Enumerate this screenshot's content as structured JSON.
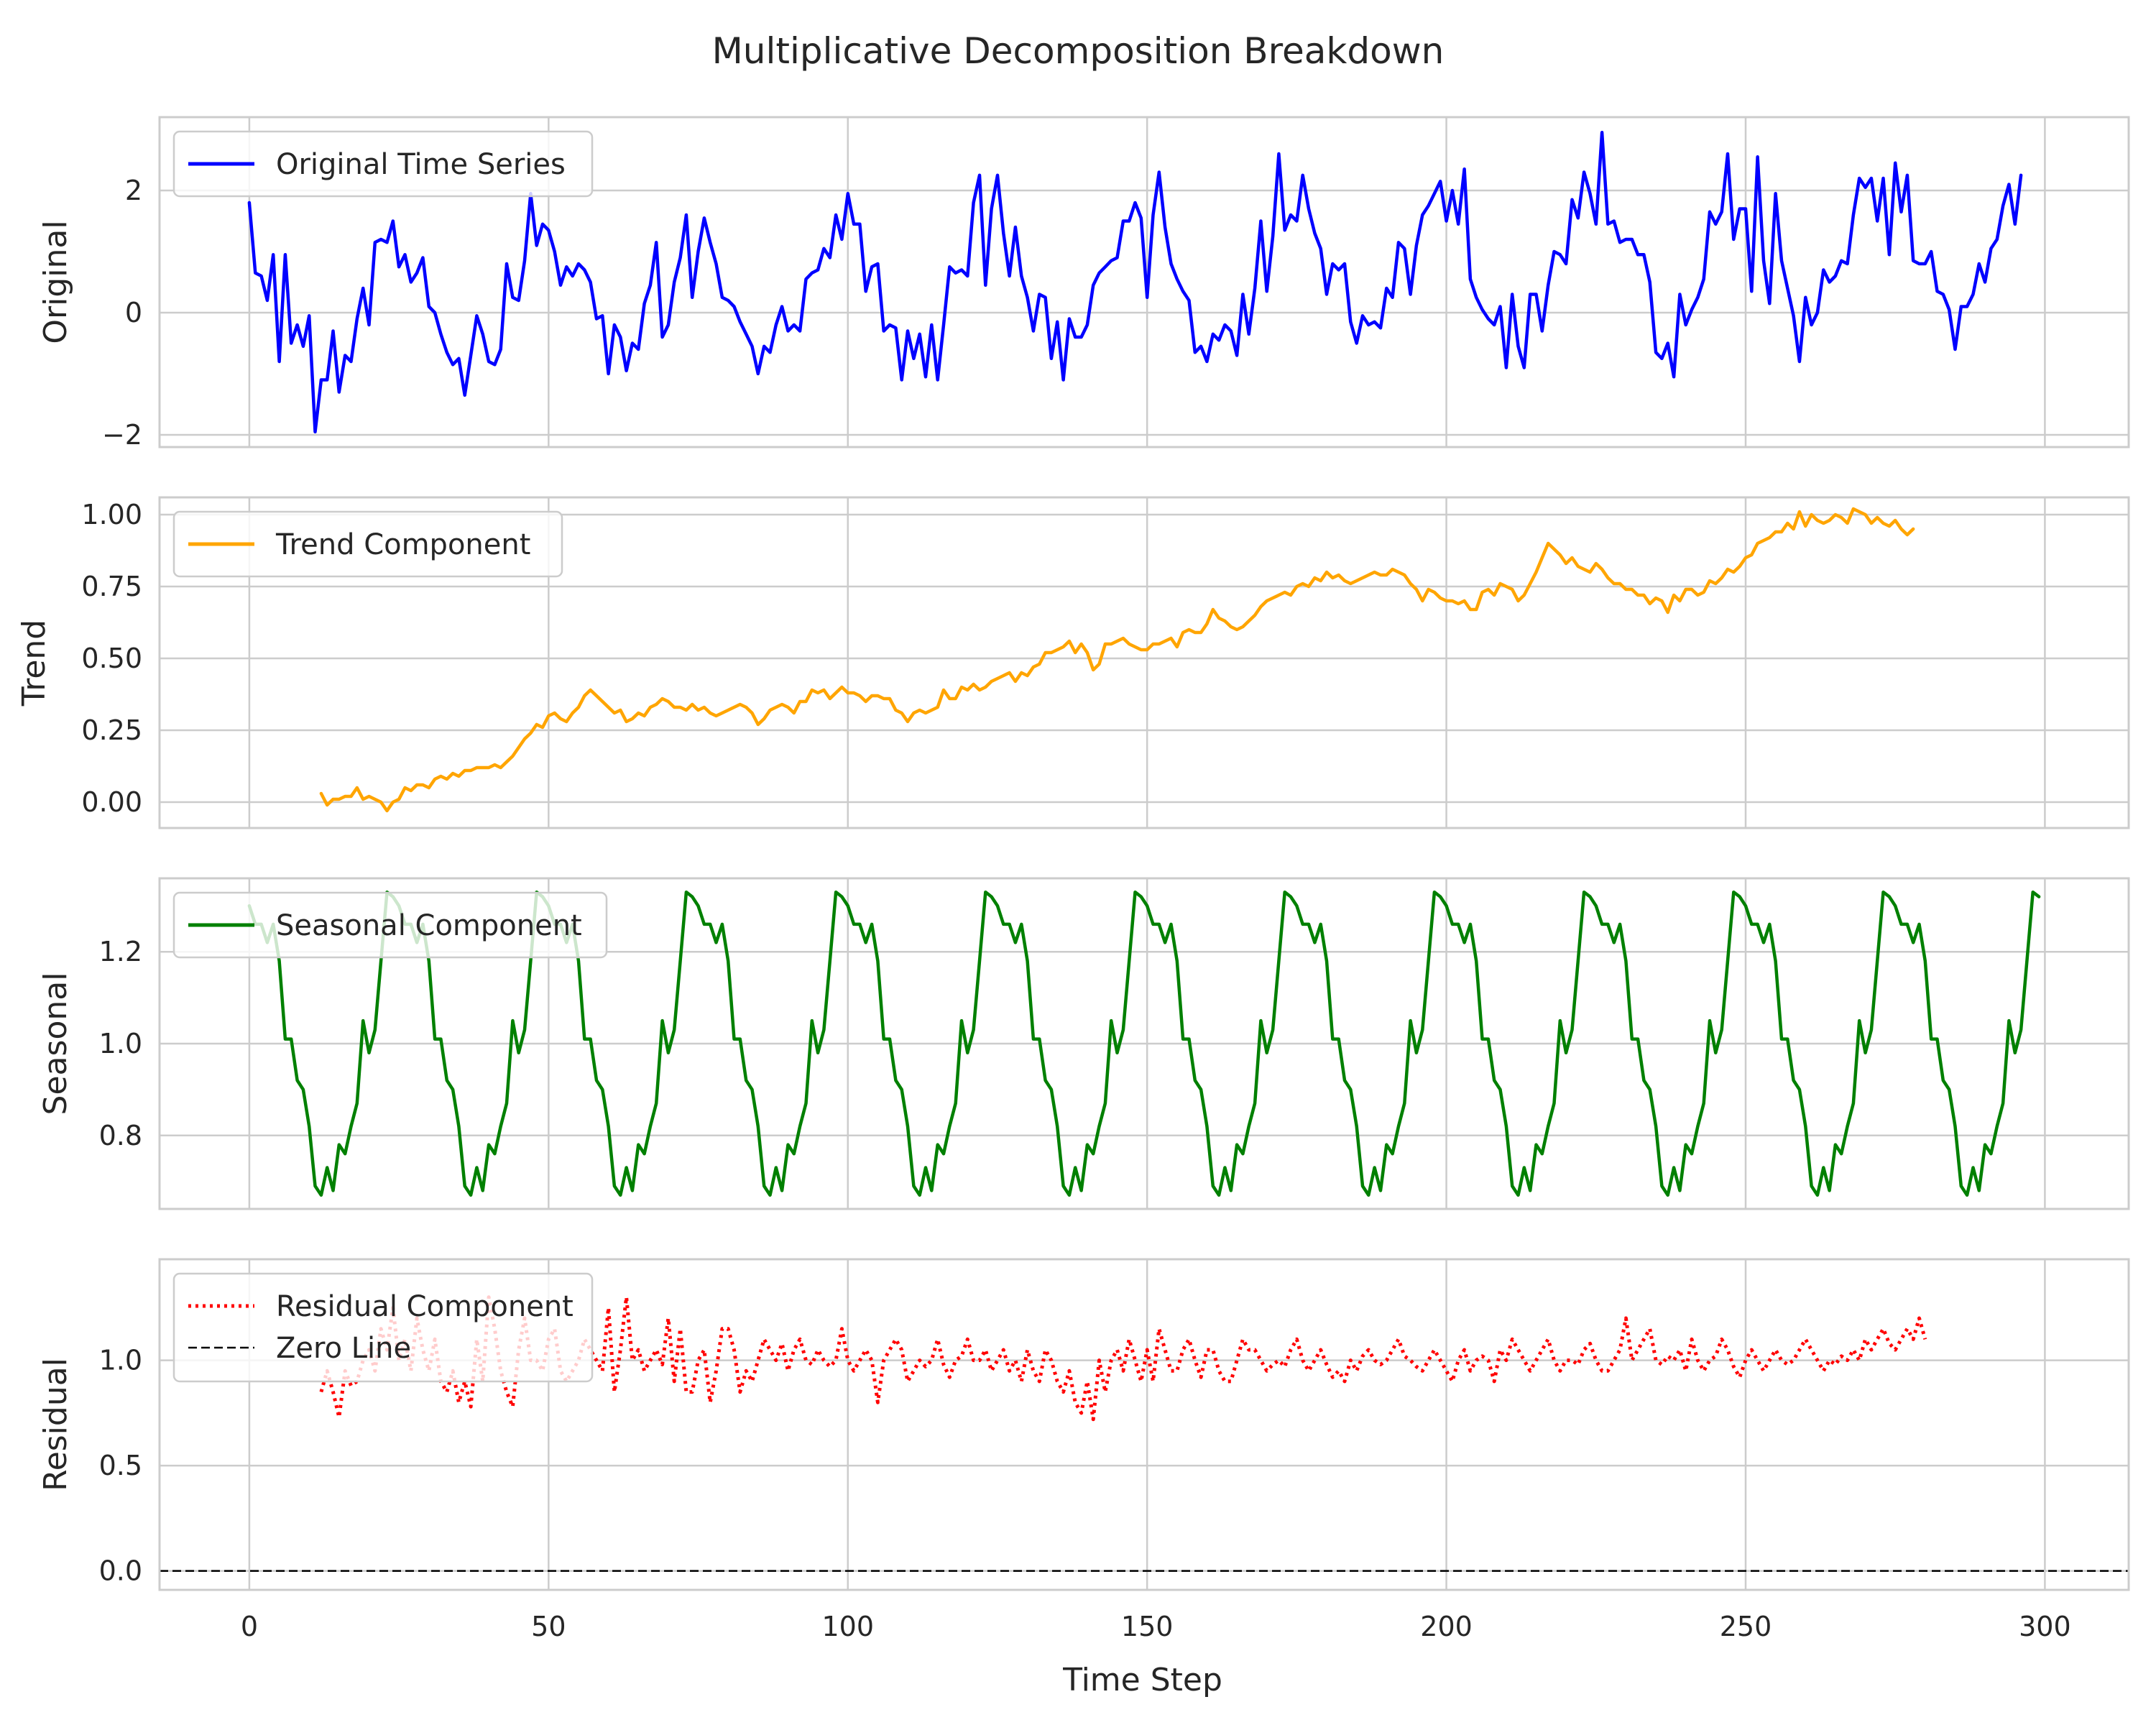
{
  "chart_data": {
    "type": "line",
    "title": "Multiplicative Decomposition Breakdown",
    "xlabel": "Time Step",
    "xlim": [
      -15,
      314
    ],
    "xticks": [
      0,
      50,
      100,
      150,
      200,
      250,
      300
    ],
    "grid": true,
    "subplots": [
      {
        "ylabel": "Original",
        "ylim": [
          -2.2,
          3.2
        ],
        "yticks": [
          -2,
          0,
          2
        ],
        "ytick_labels": [
          "−2",
          "0",
          "2"
        ],
        "legend_position": "upper-left",
        "series": [
          {
            "name": "Original Time Series",
            "color": "#0000ff",
            "style": "solid",
            "x_start": 0,
            "values": [
              1.8,
              0.65,
              0.6,
              0.2,
              0.95,
              -0.8,
              0.95,
              -0.5,
              -0.2,
              -0.55,
              -0.05,
              -1.95,
              -1.1,
              -1.1,
              -0.3,
              -1.3,
              -0.7,
              -0.8,
              -0.1,
              0.4,
              -0.2,
              1.15,
              1.2,
              1.15,
              1.5,
              0.75,
              0.95,
              0.5,
              0.65,
              0.9,
              0.1,
              0.0,
              -0.35,
              -0.65,
              -0.85,
              -0.75,
              -1.35,
              -0.7,
              -0.05,
              -0.35,
              -0.8,
              -0.85,
              -0.6,
              0.8,
              0.25,
              0.2,
              0.85,
              1.95,
              1.1,
              1.45,
              1.35,
              1.0,
              0.45,
              0.75,
              0.6,
              0.8,
              0.7,
              0.5,
              -0.1,
              -0.05,
              -1.0,
              -0.2,
              -0.4,
              -0.95,
              -0.5,
              -0.6,
              0.15,
              0.45,
              1.15,
              -0.4,
              -0.2,
              0.5,
              0.9,
              1.6,
              0.25,
              1.0,
              1.55,
              1.15,
              0.8,
              0.25,
              0.2,
              0.1,
              -0.15,
              -0.35,
              -0.55,
              -1.0,
              -0.55,
              -0.65,
              -0.2,
              0.1,
              -0.3,
              -0.2,
              -0.3,
              0.55,
              0.65,
              0.7,
              1.05,
              0.9,
              1.6,
              1.2,
              1.95,
              1.45,
              1.45,
              0.35,
              0.75,
              0.8,
              -0.3,
              -0.2,
              -0.25,
              -1.1,
              -0.3,
              -0.75,
              -0.35,
              -1.05,
              -0.2,
              -1.1,
              -0.2,
              0.75,
              0.65,
              0.7,
              0.6,
              1.8,
              2.25,
              0.45,
              1.7,
              2.25,
              1.3,
              0.6,
              1.4,
              0.6,
              0.25,
              -0.3,
              0.3,
              0.25,
              -0.75,
              -0.15,
              -1.1,
              -0.1,
              -0.4,
              -0.4,
              -0.2,
              0.45,
              0.65,
              0.75,
              0.85,
              0.9,
              1.5,
              1.5,
              1.8,
              1.55,
              0.25,
              1.6,
              2.3,
              1.4,
              0.8,
              0.55,
              0.35,
              0.2,
              -0.65,
              -0.55,
              -0.8,
              -0.35,
              -0.45,
              -0.2,
              -0.3,
              -0.7,
              0.3,
              -0.35,
              0.4,
              1.5,
              0.35,
              1.25,
              2.6,
              1.35,
              1.6,
              1.5,
              2.25,
              1.7,
              1.3,
              1.05,
              0.3,
              0.8,
              0.7,
              0.8,
              -0.15,
              -0.5,
              -0.05,
              -0.2,
              -0.15,
              -0.25,
              0.4,
              0.25,
              1.15,
              1.05,
              0.3,
              1.1,
              1.6,
              1.75,
              1.95,
              2.15,
              1.5,
              2.0,
              1.45,
              2.35,
              0.55,
              0.25,
              0.05,
              -0.1,
              -0.2,
              0.1,
              -0.9,
              0.3,
              -0.55,
              -0.9,
              0.3,
              0.3,
              -0.3,
              0.45,
              1.0,
              0.95,
              0.8,
              1.85,
              1.55,
              2.3,
              1.95,
              1.45,
              2.95,
              1.45,
              1.5,
              1.15,
              1.2,
              1.2,
              0.95,
              0.95,
              0.5,
              -0.65,
              -0.75,
              -0.5,
              -1.05,
              0.3,
              -0.2,
              0.05,
              0.25,
              0.55,
              1.65,
              1.45,
              1.65,
              2.6,
              1.2,
              1.7,
              1.7,
              0.35,
              2.55,
              0.85,
              0.15,
              1.95,
              0.85,
              0.4,
              -0.05,
              -0.8,
              0.25,
              -0.2,
              0.0,
              0.7,
              0.5,
              0.6,
              0.85,
              0.8,
              1.6,
              2.2,
              2.05,
              2.2,
              1.5,
              2.2,
              0.95,
              2.45,
              1.65,
              2.25,
              0.85,
              0.8,
              0.8,
              1.0,
              0.35,
              0.3,
              0.05,
              -0.6,
              0.1,
              0.1,
              0.3,
              0.8,
              0.5,
              1.05,
              1.2,
              1.75,
              2.1,
              1.45,
              2.25
            ]
          }
        ]
      },
      {
        "ylabel": "Trend",
        "ylim": [
          -0.09,
          1.06
        ],
        "yticks": [
          0.0,
          0.25,
          0.5,
          0.75,
          1.0
        ],
        "ytick_labels": [
          "0.00",
          "0.25",
          "0.50",
          "0.75",
          "1.00"
        ],
        "legend_position": "upper-left",
        "series": [
          {
            "name": "Trend Component",
            "color": "#ffa500",
            "style": "solid",
            "x_start": 12,
            "values": [
              0.03,
              -0.01,
              0.01,
              0.01,
              0.02,
              0.02,
              0.05,
              0.01,
              0.02,
              0.01,
              0.0,
              -0.03,
              0.0,
              0.01,
              0.05,
              0.04,
              0.06,
              0.06,
              0.05,
              0.08,
              0.09,
              0.08,
              0.1,
              0.09,
              0.11,
              0.11,
              0.12,
              0.12,
              0.12,
              0.13,
              0.12,
              0.14,
              0.16,
              0.19,
              0.22,
              0.24,
              0.27,
              0.26,
              0.3,
              0.31,
              0.29,
              0.28,
              0.31,
              0.33,
              0.37,
              0.39,
              0.37,
              0.35,
              0.33,
              0.31,
              0.32,
              0.28,
              0.29,
              0.31,
              0.3,
              0.33,
              0.34,
              0.36,
              0.35,
              0.33,
              0.33,
              0.32,
              0.34,
              0.32,
              0.33,
              0.31,
              0.3,
              0.31,
              0.32,
              0.33,
              0.34,
              0.33,
              0.31,
              0.27,
              0.29,
              0.32,
              0.33,
              0.34,
              0.33,
              0.31,
              0.35,
              0.35,
              0.39,
              0.38,
              0.39,
              0.36,
              0.38,
              0.4,
              0.38,
              0.38,
              0.37,
              0.35,
              0.37,
              0.37,
              0.36,
              0.36,
              0.32,
              0.31,
              0.28,
              0.31,
              0.32,
              0.31,
              0.32,
              0.33,
              0.39,
              0.36,
              0.36,
              0.4,
              0.39,
              0.41,
              0.39,
              0.4,
              0.42,
              0.43,
              0.44,
              0.45,
              0.42,
              0.45,
              0.44,
              0.47,
              0.48,
              0.52,
              0.52,
              0.53,
              0.54,
              0.56,
              0.52,
              0.55,
              0.52,
              0.46,
              0.48,
              0.55,
              0.55,
              0.56,
              0.57,
              0.55,
              0.54,
              0.53,
              0.53,
              0.55,
              0.55,
              0.56,
              0.57,
              0.54,
              0.59,
              0.6,
              0.59,
              0.59,
              0.62,
              0.67,
              0.64,
              0.63,
              0.61,
              0.6,
              0.61,
              0.63,
              0.65,
              0.68,
              0.7,
              0.71,
              0.72,
              0.73,
              0.72,
              0.75,
              0.76,
              0.75,
              0.78,
              0.77,
              0.8,
              0.78,
              0.79,
              0.77,
              0.76,
              0.77,
              0.78,
              0.79,
              0.8,
              0.79,
              0.79,
              0.81,
              0.8,
              0.79,
              0.76,
              0.74,
              0.7,
              0.74,
              0.73,
              0.71,
              0.7,
              0.7,
              0.69,
              0.7,
              0.67,
              0.67,
              0.73,
              0.74,
              0.72,
              0.76,
              0.75,
              0.74,
              0.7,
              0.72,
              0.76,
              0.8,
              0.85,
              0.9,
              0.88,
              0.86,
              0.83,
              0.85,
              0.82,
              0.81,
              0.8,
              0.83,
              0.81,
              0.78,
              0.76,
              0.76,
              0.74,
              0.74,
              0.72,
              0.72,
              0.69,
              0.71,
              0.7,
              0.66,
              0.72,
              0.7,
              0.74,
              0.74,
              0.72,
              0.73,
              0.77,
              0.76,
              0.78,
              0.81,
              0.8,
              0.82,
              0.85,
              0.86,
              0.9,
              0.91,
              0.92,
              0.94,
              0.94,
              0.97,
              0.95,
              1.01,
              0.96,
              1.0,
              0.98,
              0.97,
              0.98,
              1.0,
              0.99,
              0.97,
              1.02,
              1.01,
              1.0,
              0.97,
              0.99,
              0.97,
              0.96,
              0.98,
              0.95,
              0.93,
              0.95
            ]
          }
        ]
      },
      {
        "ylabel": "Seasonal",
        "ylim": [
          0.64,
          1.36
        ],
        "yticks": [
          0.8,
          1.0,
          1.2
        ],
        "ytick_labels": [
          "0.8",
          "1.0",
          "1.2"
        ],
        "legend_position": "upper-left",
        "series": [
          {
            "name": "Seasonal Component",
            "color": "#008000",
            "style": "solid",
            "x_start": 0,
            "period": 25,
            "pattern": [
              1.3,
              1.26,
              1.26,
              1.22,
              1.26,
              1.18,
              1.01,
              1.01,
              0.92,
              0.9,
              0.82,
              0.69,
              0.67,
              0.73,
              0.68,
              0.78,
              0.76,
              0.82,
              0.87,
              1.05,
              0.98,
              1.03,
              1.18,
              1.33,
              1.32
            ],
            "values": []
          }
        ]
      },
      {
        "ylabel": "Residual",
        "ylim": [
          -0.09,
          1.48
        ],
        "yticks": [
          0.0,
          0.5,
          1.0
        ],
        "ytick_labels": [
          "0.0",
          "0.5",
          "1.0"
        ],
        "legend_position": "upper-left",
        "series": [
          {
            "name": "Residual Component",
            "color": "#ff0000",
            "style": "dotted",
            "x_start": 12,
            "values": [
              0.85,
              0.95,
              0.85,
              0.73,
              0.95,
              0.88,
              0.9,
              1.0,
              1.05,
              0.95,
              1.15,
              1.05,
              1.25,
              1.0,
              1.1,
              0.95,
              1.2,
              1.05,
              0.95,
              1.1,
              0.9,
              0.85,
              0.95,
              0.8,
              0.9,
              0.78,
              1.1,
              0.9,
              1.3,
              1.15,
              0.95,
              0.85,
              0.78,
              1.05,
              1.2,
              1.0,
              1.0,
              0.95,
              1.1,
              1.15,
              0.95,
              0.9,
              0.95,
              1.0,
              1.1,
              1.05,
              1.0,
              0.95,
              1.25,
              0.85,
              1.05,
              1.3,
              1.0,
              1.05,
              0.95,
              1.0,
              1.05,
              0.98,
              1.2,
              0.9,
              1.15,
              0.85,
              0.85,
              1.0,
              1.05,
              0.8,
              0.95,
              1.15,
              1.15,
              1.05,
              0.85,
              0.95,
              0.9,
              1.0,
              1.1,
              1.05,
              1.0,
              1.08,
              0.95,
              1.05,
              1.1,
              1.0,
              0.98,
              1.05,
              1.0,
              0.97,
              1.0,
              1.15,
              1.0,
              0.95,
              1.0,
              1.05,
              1.0,
              0.8,
              1.0,
              1.05,
              1.1,
              1.05,
              0.9,
              0.95,
              1.0,
              0.97,
              1.0,
              1.1,
              0.98,
              0.92,
              1.0,
              1.02,
              1.1,
              1.0,
              1.0,
              1.05,
              0.95,
              1.0,
              1.05,
              0.95,
              1.0,
              0.9,
              1.05,
              0.95,
              0.9,
              1.05,
              1.0,
              0.9,
              0.85,
              0.95,
              0.8,
              0.75,
              0.9,
              0.72,
              1.0,
              0.85,
              1.0,
              1.05,
              0.95,
              1.1,
              1.0,
              0.9,
              1.05,
              0.9,
              1.15,
              1.05,
              0.95,
              0.95,
              1.05,
              1.1,
              1.0,
              0.92,
              1.05,
              1.05,
              0.95,
              0.9,
              0.9,
              1.0,
              1.1,
              1.05,
              1.05,
              1.0,
              0.95,
              0.98,
              1.0,
              0.97,
              1.05,
              1.1,
              1.0,
              0.95,
              1.0,
              1.05,
              0.98,
              0.92,
              0.95,
              0.9,
              1.0,
              0.95,
              1.02,
              1.05,
              1.0,
              0.98,
              1.0,
              1.05,
              1.1,
              1.02,
              1.0,
              0.97,
              0.95,
              1.0,
              1.05,
              1.0,
              0.95,
              0.9,
              1.0,
              1.05,
              0.95,
              1.0,
              1.02,
              1.0,
              0.9,
              1.05,
              1.0,
              1.1,
              1.05,
              1.0,
              0.95,
              1.0,
              1.05,
              1.1,
              1.0,
              0.95,
              1.0,
              1.0,
              0.98,
              1.05,
              1.08,
              1.0,
              0.95,
              0.95,
              1.0,
              1.05,
              1.2,
              1.0,
              1.05,
              1.1,
              1.15,
              1.0,
              0.98,
              1.02,
              1.0,
              1.05,
              0.95,
              1.1,
              1.0,
              0.95,
              1.0,
              1.02,
              1.1,
              1.05,
              0.97,
              0.92,
              1.0,
              1.05,
              1.0,
              0.95,
              1.0,
              1.05,
              1.0,
              0.98,
              1.0,
              1.05,
              1.1,
              1.05,
              1.0,
              0.95,
              1.0,
              0.98,
              1.02,
              1.0,
              1.05,
              1.0,
              1.1,
              1.05,
              1.1,
              1.15,
              1.08,
              1.05,
              1.1,
              1.15,
              1.1,
              1.2,
              1.1
            ]
          },
          {
            "name": "Zero Line",
            "color": "#000000",
            "style": "dashed",
            "hline": 0
          }
        ]
      }
    ]
  }
}
